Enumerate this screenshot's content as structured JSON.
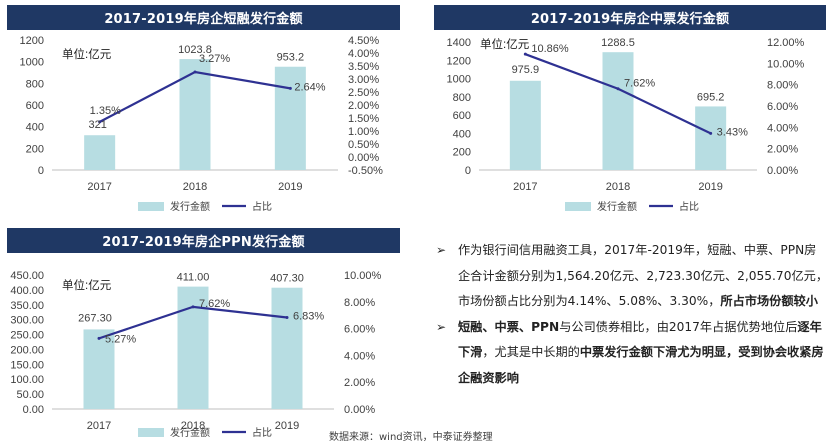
{
  "chart_data": [
    {
      "type": "bar+line",
      "title": "2017-2019年房企短融发行金额",
      "unit_label": "单位:亿元",
      "categories": [
        "2017",
        "2018",
        "2019"
      ],
      "series": [
        {
          "name": "发行金额",
          "type": "bar",
          "values": [
            321,
            1023.8,
            953.2
          ],
          "labels": [
            "321",
            "1023.8",
            "953.2"
          ],
          "color": "#b7dde2"
        },
        {
          "name": "占比",
          "type": "line",
          "axis": "right",
          "values": [
            1.35,
            3.27,
            2.64
          ],
          "labels": [
            "1.35%",
            "3.27%",
            "2.64%"
          ],
          "color": "#2e3192"
        }
      ],
      "left_ticks": [
        "0",
        "200",
        "400",
        "600",
        "800",
        "1000",
        "1200"
      ],
      "right_ticks": [
        "-0.50%",
        "0.00%",
        "0.50%",
        "1.00%",
        "1.50%",
        "2.00%",
        "2.50%",
        "3.00%",
        "3.50%",
        "4.00%",
        "4.50%"
      ],
      "ylim_left": [
        0,
        1200
      ],
      "ylim_right": [
        -0.5,
        4.5
      ],
      "legend_position": "bottom"
    },
    {
      "type": "bar+line",
      "title": "2017-2019年房企中票发行金额",
      "unit_label": "单位:亿元",
      "categories": [
        "2017",
        "2018",
        "2019"
      ],
      "series": [
        {
          "name": "发行金额",
          "type": "bar",
          "values": [
            975.9,
            1288.5,
            695.2
          ],
          "labels": [
            "975.9",
            "1288.5",
            "695.2"
          ],
          "color": "#b7dde2"
        },
        {
          "name": "占比",
          "type": "line",
          "axis": "right",
          "values": [
            10.86,
            7.62,
            3.43
          ],
          "labels": [
            "10.86%",
            "7.62%",
            "3.43%"
          ],
          "color": "#2e3192"
        }
      ],
      "left_ticks": [
        "0",
        "200",
        "400",
        "600",
        "800",
        "1000",
        "1200",
        "1400"
      ],
      "right_ticks": [
        "0.00%",
        "2.00%",
        "4.00%",
        "6.00%",
        "8.00%",
        "10.00%",
        "12.00%"
      ],
      "ylim_left": [
        0,
        1400
      ],
      "ylim_right": [
        0,
        12
      ],
      "legend_position": "bottom"
    },
    {
      "type": "bar+line",
      "title": "2017-2019年房企PPN发行金额",
      "unit_label": "单位:亿元",
      "categories": [
        "2017",
        "2018",
        "2019"
      ],
      "series": [
        {
          "name": "发行金额",
          "type": "bar",
          "values": [
            267.3,
            411.0,
            407.3
          ],
          "labels": [
            "267.30",
            "411.00",
            "407.30"
          ],
          "color": "#b7dde2"
        },
        {
          "name": "占比",
          "type": "line",
          "axis": "right",
          "values": [
            5.27,
            7.62,
            6.83
          ],
          "labels": [
            "5.27%",
            "7.62%",
            "6.83%"
          ],
          "color": "#2e3192"
        }
      ],
      "left_ticks": [
        "0.00",
        "50.00",
        "100.00",
        "150.00",
        "200.00",
        "250.00",
        "300.00",
        "350.00",
        "400.00",
        "450.00"
      ],
      "right_ticks": [
        "0.00%",
        "2.00%",
        "4.00%",
        "6.00%",
        "8.00%",
        "10.00%"
      ],
      "ylim_left": [
        0,
        450
      ],
      "ylim_right": [
        0,
        10
      ],
      "legend_position": "bottom"
    }
  ],
  "source_note": "数据来源：wind资讯，中泰证券整理",
  "notes": {
    "bullet_glyph": "➢",
    "b1_pre": "作为银行间信用融资工具，2017年-2019年，短融、中票、PPN房企合计金额分别为1,564.20亿元、2,723.30亿元、2,055.70亿元，市场份额占比分别为4.14%、5.08%、3.30%，",
    "b1_bold": "所占市场份额较小",
    "b2_bold1": "短融、中票、PPN",
    "b2_mid1": "与公司债券相比，由2017年占据优势地位后",
    "b2_bold2": "逐年下滑",
    "b2_mid2": "，尤其是中长期的",
    "b2_bold3": "中票发行金额下滑尤为明显，受到协会收紧房企融资影响"
  }
}
